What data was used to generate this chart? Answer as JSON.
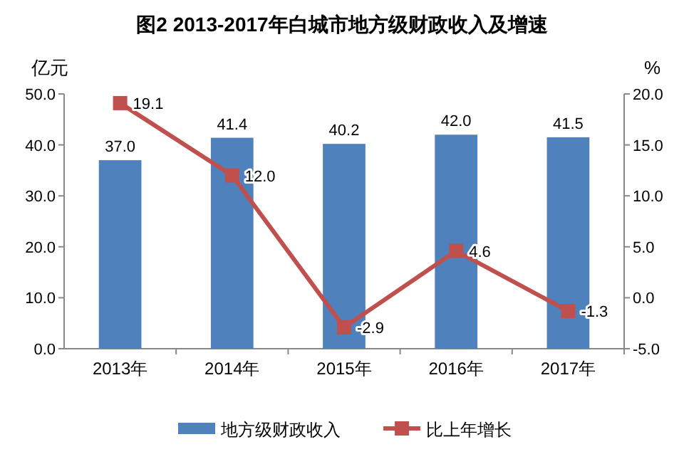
{
  "chart_data": {
    "type": "bar",
    "title": "图2 2013-2017年白城市地方级财政收入及增速",
    "ylabel": "亿元",
    "y2label": "%",
    "categories": [
      "2013年",
      "2014年",
      "2015年",
      "2016年",
      "2017年"
    ],
    "series": [
      {
        "name": "地方级财政收入",
        "color": "#4f81bd",
        "values": [
          37.0,
          41.4,
          40.2,
          42.0,
          41.5
        ],
        "value_labels": [
          "37.0",
          "41.4",
          "40.2",
          "42.0",
          "41.5"
        ]
      },
      {
        "name": "比上年增长",
        "type": "line",
        "axis": "y2",
        "color": "#c0504d",
        "marker": "square",
        "values": [
          19.1,
          12.0,
          -2.9,
          4.6,
          -1.3
        ],
        "value_labels": [
          "19.1",
          "12.0",
          "-2.9",
          "4.6",
          "-1.3"
        ]
      }
    ],
    "ylim": [
      0,
      50
    ],
    "yticks": [
      {
        "value": 0,
        "label": "0.0"
      },
      {
        "value": 10,
        "label": "10.0"
      },
      {
        "value": 20,
        "label": "20.0"
      },
      {
        "value": 30,
        "label": "30.0"
      },
      {
        "value": 40,
        "label": "40.0"
      },
      {
        "value": 50,
        "label": "50.0"
      }
    ],
    "y2lim": [
      -5,
      20
    ],
    "y2ticks": [
      {
        "value": -5,
        "label": "-5.0"
      },
      {
        "value": 0,
        "label": "0.0"
      },
      {
        "value": 5,
        "label": "5.0"
      },
      {
        "value": 10,
        "label": "10.0"
      },
      {
        "value": 15,
        "label": "15.0"
      },
      {
        "value": 20,
        "label": "20.0"
      }
    ],
    "legend": "bottom"
  }
}
